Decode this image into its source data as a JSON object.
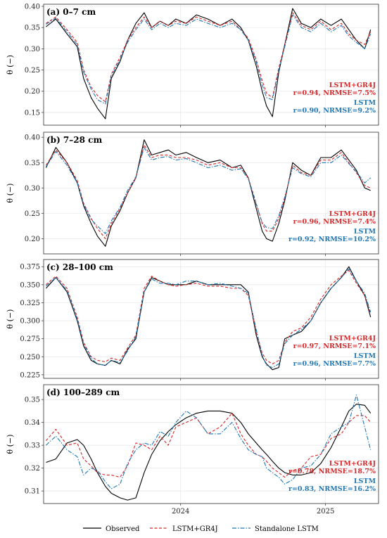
{
  "chart_data": [
    {
      "type": "line",
      "panel": "(a) 0–7 cm",
      "ylabel": "θ (−)",
      "ylim": [
        0.12,
        0.405
      ],
      "yticks": [
        0.15,
        0.2,
        0.25,
        0.3,
        0.35,
        0.4
      ],
      "ytick_labels": [
        "0.15",
        "0.20",
        "0.25",
        "0.30",
        "0.35",
        "0.40"
      ],
      "xticks": [
        {
          "label": "2024",
          "x": "2024-01-01"
        },
        {
          "label": "2025",
          "x": "2025-01-01"
        }
      ],
      "xlim": [
        "2023-01-20",
        "2025-05-15"
      ],
      "x": [
        "2023-01-26",
        "2023-02-20",
        "2023-03-20",
        "2023-04-15",
        "2023-05-01",
        "2023-05-20",
        "2023-06-05",
        "2023-06-25",
        "2023-07-10",
        "2023-08-01",
        "2023-08-20",
        "2023-09-10",
        "2023-10-01",
        "2023-10-20",
        "2023-11-10",
        "2023-12-01",
        "2023-12-20",
        "2024-01-15",
        "2024-02-10",
        "2024-03-10",
        "2024-04-10",
        "2024-05-10",
        "2024-06-01",
        "2024-06-20",
        "2024-07-10",
        "2024-07-25",
        "2024-08-05",
        "2024-08-20",
        "2024-09-05",
        "2024-09-20",
        "2024-10-10",
        "2024-11-01",
        "2024-11-25",
        "2024-12-20",
        "2025-01-15",
        "2025-02-10",
        "2025-03-01",
        "2025-03-20",
        "2025-04-10",
        "2025-04-25"
      ],
      "series": [
        {
          "name": "Observed",
          "color": "#000000",
          "dash": "solid",
          "values": [
            0.352,
            0.37,
            0.335,
            0.305,
            0.23,
            0.185,
            0.16,
            0.135,
            0.23,
            0.27,
            0.32,
            0.36,
            0.385,
            0.35,
            0.365,
            0.355,
            0.37,
            0.36,
            0.38,
            0.37,
            0.355,
            0.37,
            0.35,
            0.32,
            0.26,
            0.2,
            0.165,
            0.14,
            0.245,
            0.31,
            0.395,
            0.36,
            0.35,
            0.37,
            0.355,
            0.37,
            0.345,
            0.32,
            0.3,
            0.345
          ]
        },
        {
          "name": "LSTM+GR4J",
          "color": "#d62728",
          "dash": "dashed",
          "values": [
            0.36,
            0.375,
            0.345,
            0.315,
            0.25,
            0.21,
            0.19,
            0.175,
            0.24,
            0.28,
            0.32,
            0.35,
            0.375,
            0.35,
            0.365,
            0.355,
            0.365,
            0.36,
            0.375,
            0.365,
            0.355,
            0.365,
            0.345,
            0.325,
            0.275,
            0.225,
            0.195,
            0.185,
            0.255,
            0.31,
            0.385,
            0.355,
            0.345,
            0.365,
            0.345,
            0.36,
            0.335,
            0.32,
            0.31,
            0.34
          ]
        },
        {
          "name": "Standalone LSTM",
          "color": "#1f77b4",
          "dash": "dashdot",
          "values": [
            0.358,
            0.372,
            0.34,
            0.31,
            0.245,
            0.205,
            0.18,
            0.17,
            0.235,
            0.275,
            0.315,
            0.345,
            0.37,
            0.345,
            0.36,
            0.35,
            0.36,
            0.355,
            0.37,
            0.36,
            0.35,
            0.36,
            0.345,
            0.32,
            0.27,
            0.215,
            0.185,
            0.18,
            0.25,
            0.305,
            0.38,
            0.35,
            0.34,
            0.36,
            0.34,
            0.355,
            0.33,
            0.315,
            0.3,
            0.335
          ]
        }
      ],
      "metrics": [
        {
          "model": "LSTM+GR4J",
          "text": "r=0.94, NRMSE=7.5%",
          "color": "#d62728"
        },
        {
          "model": "LSTM",
          "text": "r=0.90, NRMSE=9.2%",
          "color": "#1f77b4"
        }
      ]
    },
    {
      "type": "line",
      "panel": "(b) 7–28 cm",
      "ylabel": "θ (−)",
      "ylim": [
        0.17,
        0.41
      ],
      "yticks": [
        0.2,
        0.25,
        0.3,
        0.35,
        0.4
      ],
      "ytick_labels": [
        "0.20",
        "0.25",
        "0.30",
        "0.35",
        "0.40"
      ],
      "xticks": [
        {
          "label": "2024",
          "x": "2024-01-01"
        },
        {
          "label": "2025",
          "x": "2025-01-01"
        }
      ],
      "xlim": [
        "2023-01-20",
        "2025-05-15"
      ],
      "x": [
        "2023-01-26",
        "2023-02-20",
        "2023-03-20",
        "2023-04-15",
        "2023-05-01",
        "2023-05-20",
        "2023-06-05",
        "2023-06-25",
        "2023-07-10",
        "2023-08-01",
        "2023-08-20",
        "2023-09-10",
        "2023-10-01",
        "2023-10-20",
        "2023-11-10",
        "2023-12-01",
        "2023-12-20",
        "2024-01-15",
        "2024-02-10",
        "2024-03-10",
        "2024-04-10",
        "2024-05-10",
        "2024-06-01",
        "2024-06-20",
        "2024-07-10",
        "2024-07-25",
        "2024-08-05",
        "2024-08-20",
        "2024-09-05",
        "2024-09-20",
        "2024-10-10",
        "2024-11-01",
        "2024-11-25",
        "2024-12-20",
        "2025-01-15",
        "2025-02-10",
        "2025-03-01",
        "2025-03-20",
        "2025-04-10",
        "2025-04-25"
      ],
      "series": [
        {
          "name": "Observed",
          "color": "#000000",
          "dash": "solid",
          "values": [
            0.34,
            0.38,
            0.35,
            0.31,
            0.265,
            0.23,
            0.205,
            0.185,
            0.225,
            0.255,
            0.29,
            0.32,
            0.395,
            0.365,
            0.37,
            0.375,
            0.365,
            0.37,
            0.36,
            0.35,
            0.355,
            0.34,
            0.345,
            0.32,
            0.26,
            0.215,
            0.2,
            0.195,
            0.23,
            0.275,
            0.35,
            0.335,
            0.325,
            0.36,
            0.36,
            0.375,
            0.355,
            0.335,
            0.3,
            0.295
          ]
        },
        {
          "name": "LSTM+GR4J",
          "color": "#d62728",
          "dash": "dashed",
          "values": [
            0.345,
            0.375,
            0.35,
            0.315,
            0.27,
            0.24,
            0.22,
            0.2,
            0.23,
            0.26,
            0.29,
            0.32,
            0.385,
            0.36,
            0.365,
            0.365,
            0.36,
            0.36,
            0.355,
            0.345,
            0.35,
            0.34,
            0.34,
            0.32,
            0.27,
            0.23,
            0.215,
            0.215,
            0.24,
            0.28,
            0.345,
            0.33,
            0.325,
            0.355,
            0.355,
            0.37,
            0.35,
            0.33,
            0.305,
            0.3
          ]
        },
        {
          "name": "Standalone LSTM",
          "color": "#1f77b4",
          "dash": "dashdot",
          "values": [
            0.342,
            0.372,
            0.345,
            0.31,
            0.268,
            0.238,
            0.225,
            0.21,
            0.235,
            0.262,
            0.295,
            0.322,
            0.38,
            0.355,
            0.36,
            0.362,
            0.355,
            0.358,
            0.35,
            0.34,
            0.345,
            0.335,
            0.338,
            0.318,
            0.268,
            0.232,
            0.222,
            0.22,
            0.245,
            0.282,
            0.34,
            0.328,
            0.322,
            0.35,
            0.35,
            0.365,
            0.348,
            0.332,
            0.31,
            0.32
          ]
        }
      ],
      "metrics": [
        {
          "model": "LSTM+GR4J",
          "text": "r=0.96, NRMSE=7.4%",
          "color": "#d62728"
        },
        {
          "model": "LSTM",
          "text": "r=0.92, NRMSE=10.2%",
          "color": "#1f77b4"
        }
      ]
    },
    {
      "type": "line",
      "panel": "(c) 28–100 cm",
      "ylabel": "θ (−)",
      "ylim": [
        0.22,
        0.385
      ],
      "yticks": [
        0.225,
        0.25,
        0.275,
        0.3,
        0.325,
        0.35,
        0.375
      ],
      "ytick_labels": [
        "0.225",
        "0.250",
        "0.275",
        "0.300",
        "0.325",
        "0.350",
        "0.375"
      ],
      "xticks": [
        {
          "label": "2024",
          "x": "2024-01-01"
        },
        {
          "label": "2025",
          "x": "2025-01-01"
        }
      ],
      "xlim": [
        "2023-01-20",
        "2025-05-15"
      ],
      "x": [
        "2023-01-26",
        "2023-02-20",
        "2023-03-20",
        "2023-04-15",
        "2023-05-01",
        "2023-05-20",
        "2023-06-05",
        "2023-06-25",
        "2023-07-10",
        "2023-08-01",
        "2023-08-20",
        "2023-09-10",
        "2023-10-01",
        "2023-10-20",
        "2023-11-10",
        "2023-12-01",
        "2023-12-20",
        "2024-01-15",
        "2024-02-10",
        "2024-03-10",
        "2024-04-10",
        "2024-05-10",
        "2024-06-01",
        "2024-06-20",
        "2024-07-10",
        "2024-07-25",
        "2024-08-05",
        "2024-08-20",
        "2024-09-05",
        "2024-09-20",
        "2024-10-10",
        "2024-11-01",
        "2024-11-25",
        "2024-12-20",
        "2025-01-15",
        "2025-02-10",
        "2025-03-01",
        "2025-03-20",
        "2025-04-10",
        "2025-04-25"
      ],
      "series": [
        {
          "name": "Observed",
          "color": "#000000",
          "dash": "solid",
          "values": [
            0.345,
            0.36,
            0.34,
            0.3,
            0.265,
            0.245,
            0.24,
            0.238,
            0.245,
            0.24,
            0.26,
            0.275,
            0.34,
            0.36,
            0.355,
            0.35,
            0.35,
            0.35,
            0.355,
            0.35,
            0.35,
            0.35,
            0.35,
            0.34,
            0.28,
            0.25,
            0.24,
            0.232,
            0.235,
            0.275,
            0.28,
            0.285,
            0.3,
            0.325,
            0.345,
            0.36,
            0.375,
            0.355,
            0.335,
            0.305
          ]
        },
        {
          "name": "LSTM+GR4J",
          "color": "#d62728",
          "dash": "dashed",
          "values": [
            0.35,
            0.362,
            0.345,
            0.305,
            0.27,
            0.25,
            0.245,
            0.243,
            0.248,
            0.245,
            0.262,
            0.28,
            0.345,
            0.362,
            0.355,
            0.35,
            0.348,
            0.35,
            0.352,
            0.348,
            0.348,
            0.345,
            0.345,
            0.335,
            0.285,
            0.255,
            0.245,
            0.24,
            0.245,
            0.27,
            0.285,
            0.29,
            0.305,
            0.33,
            0.35,
            0.362,
            0.37,
            0.352,
            0.335,
            0.31
          ]
        },
        {
          "name": "Standalone LSTM",
          "color": "#1f77b4",
          "dash": "dashdot",
          "values": [
            0.348,
            0.36,
            0.342,
            0.302,
            0.268,
            0.248,
            0.24,
            0.238,
            0.245,
            0.242,
            0.258,
            0.278,
            0.34,
            0.358,
            0.352,
            0.352,
            0.35,
            0.355,
            0.355,
            0.35,
            0.352,
            0.348,
            0.345,
            0.338,
            0.288,
            0.252,
            0.238,
            0.235,
            0.24,
            0.268,
            0.28,
            0.288,
            0.3,
            0.325,
            0.345,
            0.36,
            0.372,
            0.355,
            0.338,
            0.312
          ]
        }
      ],
      "metrics": [
        {
          "model": "LSTM+GR4J",
          "text": "r=0.97, NRMSE=7.1%",
          "color": "#d62728"
        },
        {
          "model": "LSTM",
          "text": "r=0.96, NRMSE=7.7%",
          "color": "#1f77b4"
        }
      ]
    },
    {
      "type": "line",
      "panel": "(d) 100–289 cm",
      "ylabel": "θ (−)",
      "ylim": [
        0.3045,
        0.3565
      ],
      "yticks": [
        0.31,
        0.32,
        0.33,
        0.34,
        0.35
      ],
      "ytick_labels": [
        "0.31",
        "0.32",
        "0.33",
        "0.34",
        "0.35"
      ],
      "xticks": [
        {
          "label": "2024",
          "x": "2024-01-01"
        },
        {
          "label": "2025",
          "x": "2025-01-01"
        }
      ],
      "xlim": [
        "2023-01-20",
        "2025-05-15"
      ],
      "x": [
        "2023-01-26",
        "2023-02-20",
        "2023-03-20",
        "2023-04-15",
        "2023-05-01",
        "2023-05-20",
        "2023-06-05",
        "2023-06-25",
        "2023-07-10",
        "2023-08-01",
        "2023-08-20",
        "2023-09-10",
        "2023-10-01",
        "2023-10-20",
        "2023-11-10",
        "2023-12-01",
        "2023-12-20",
        "2024-01-15",
        "2024-02-10",
        "2024-03-10",
        "2024-04-10",
        "2024-05-10",
        "2024-06-01",
        "2024-06-20",
        "2024-07-10",
        "2024-07-25",
        "2024-08-05",
        "2024-08-20",
        "2024-09-05",
        "2024-09-20",
        "2024-10-10",
        "2024-11-01",
        "2024-11-25",
        "2024-12-20",
        "2025-01-15",
        "2025-02-10",
        "2025-03-01",
        "2025-03-20",
        "2025-04-10",
        "2025-04-25"
      ],
      "series": [
        {
          "name": "Observed",
          "color": "#000000",
          "dash": "solid",
          "values": [
            0.3225,
            0.324,
            0.331,
            0.3325,
            0.33,
            0.324,
            0.318,
            0.312,
            0.309,
            0.307,
            0.306,
            0.307,
            0.318,
            0.326,
            0.332,
            0.336,
            0.339,
            0.342,
            0.344,
            0.345,
            0.345,
            0.344,
            0.34,
            0.335,
            0.331,
            0.328,
            0.326,
            0.323,
            0.32,
            0.318,
            0.317,
            0.317,
            0.318,
            0.322,
            0.329,
            0.338,
            0.345,
            0.348,
            0.3475,
            0.344
          ]
        },
        {
          "name": "LSTM+GR4J",
          "color": "#d62728",
          "dash": "dashed",
          "values": [
            0.332,
            0.337,
            0.33,
            0.331,
            0.324,
            0.321,
            0.318,
            0.317,
            0.317,
            0.316,
            0.321,
            0.331,
            0.33,
            0.328,
            0.334,
            0.33,
            0.338,
            0.34,
            0.342,
            0.335,
            0.338,
            0.344,
            0.335,
            0.33,
            0.326,
            0.325,
            0.323,
            0.32,
            0.318,
            0.316,
            0.319,
            0.32,
            0.325,
            0.326,
            0.333,
            0.335,
            0.34,
            0.343,
            0.343,
            0.34
          ]
        },
        {
          "name": "Standalone LSTM",
          "color": "#1f77b4",
          "dash": "dashdot",
          "values": [
            0.33,
            0.334,
            0.328,
            0.325,
            0.317,
            0.32,
            0.319,
            0.314,
            0.311,
            0.313,
            0.322,
            0.328,
            0.331,
            0.33,
            0.336,
            0.334,
            0.34,
            0.345,
            0.342,
            0.335,
            0.335,
            0.34,
            0.333,
            0.328,
            0.326,
            0.325,
            0.32,
            0.318,
            0.316,
            0.313,
            0.315,
            0.32,
            0.321,
            0.326,
            0.335,
            0.338,
            0.34,
            0.352,
            0.338,
            0.328
          ]
        }
      ],
      "metrics": [
        {
          "model": "LSTM+GR4J",
          "text": "r=0.78, NRMSE=18.7%",
          "color": "#d62728"
        },
        {
          "model": "LSTM",
          "text": "r=0.83, NRMSE=16.2%",
          "color": "#1f77b4"
        }
      ]
    }
  ],
  "legend": [
    {
      "label": "Observed",
      "color": "#000000",
      "dash": "solid"
    },
    {
      "label": "LSTM+GR4J",
      "color": "#d62728",
      "dash": "dashed"
    },
    {
      "label": "Standalone LSTM",
      "color": "#1f77b4",
      "dash": "dashdot"
    }
  ]
}
